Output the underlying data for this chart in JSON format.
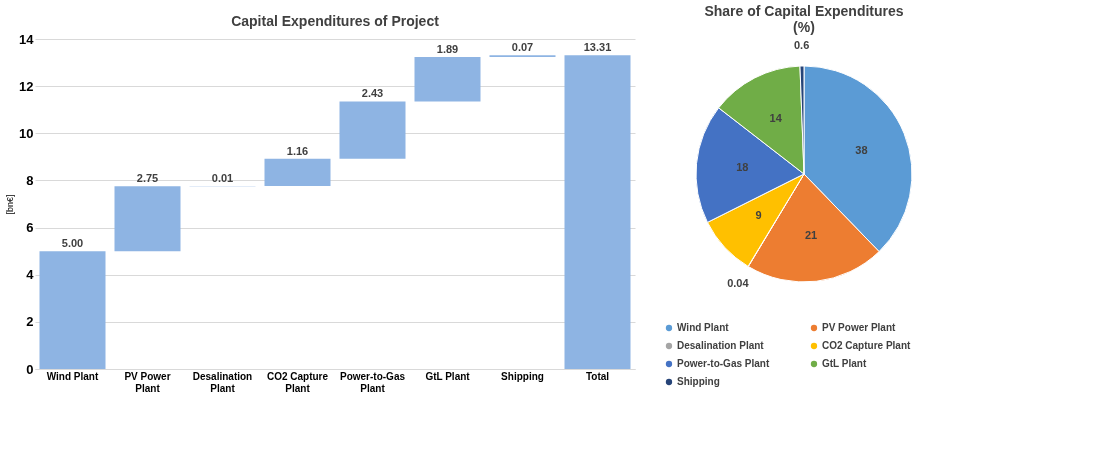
{
  "chart_data": [
    {
      "type": "bar",
      "title": "Capital Expenditures of Project",
      "ylabel": "[bn€]",
      "categories": [
        "Wind Plant",
        "PV Power Plant",
        "Desalination Plant",
        "CO2 Capture Plant",
        "Power-to-Gas Plant",
        "GtL Plant",
        "Shipping",
        "Total"
      ],
      "values": [
        5.0,
        2.75,
        0.01,
        1.16,
        2.43,
        1.89,
        0.07,
        13.31
      ],
      "base": [
        0,
        5.0,
        7.75,
        7.76,
        8.92,
        11.35,
        13.24,
        0
      ],
      "value_labels": [
        "5.00",
        "2.75",
        "0.01",
        "1.16",
        "2.43",
        "1.89",
        "0.07",
        "13.31"
      ],
      "color": "#8eb4e3",
      "ylim": [
        0,
        14
      ],
      "yticks": [
        0,
        2,
        4,
        6,
        8,
        10,
        12,
        14
      ],
      "grid": "y"
    },
    {
      "type": "pie",
      "title": "Share of Capital Expenditures (%)",
      "categories": [
        "Wind Plant",
        "PV Power Plant",
        "Desalination Plant",
        "CO2 Capture Plant",
        "Power-to-Gas Plant",
        "GtL Plant",
        "Shipping"
      ],
      "values": [
        38,
        21,
        0.04,
        9,
        18,
        14,
        0.6
      ],
      "colors": [
        "#5b9bd5",
        "#ed7d31",
        "#a5a5a5",
        "#ffc000",
        "#4472c4",
        "#70ad47",
        "#264478"
      ],
      "data_labels": true,
      "legend": "bottom"
    }
  ]
}
